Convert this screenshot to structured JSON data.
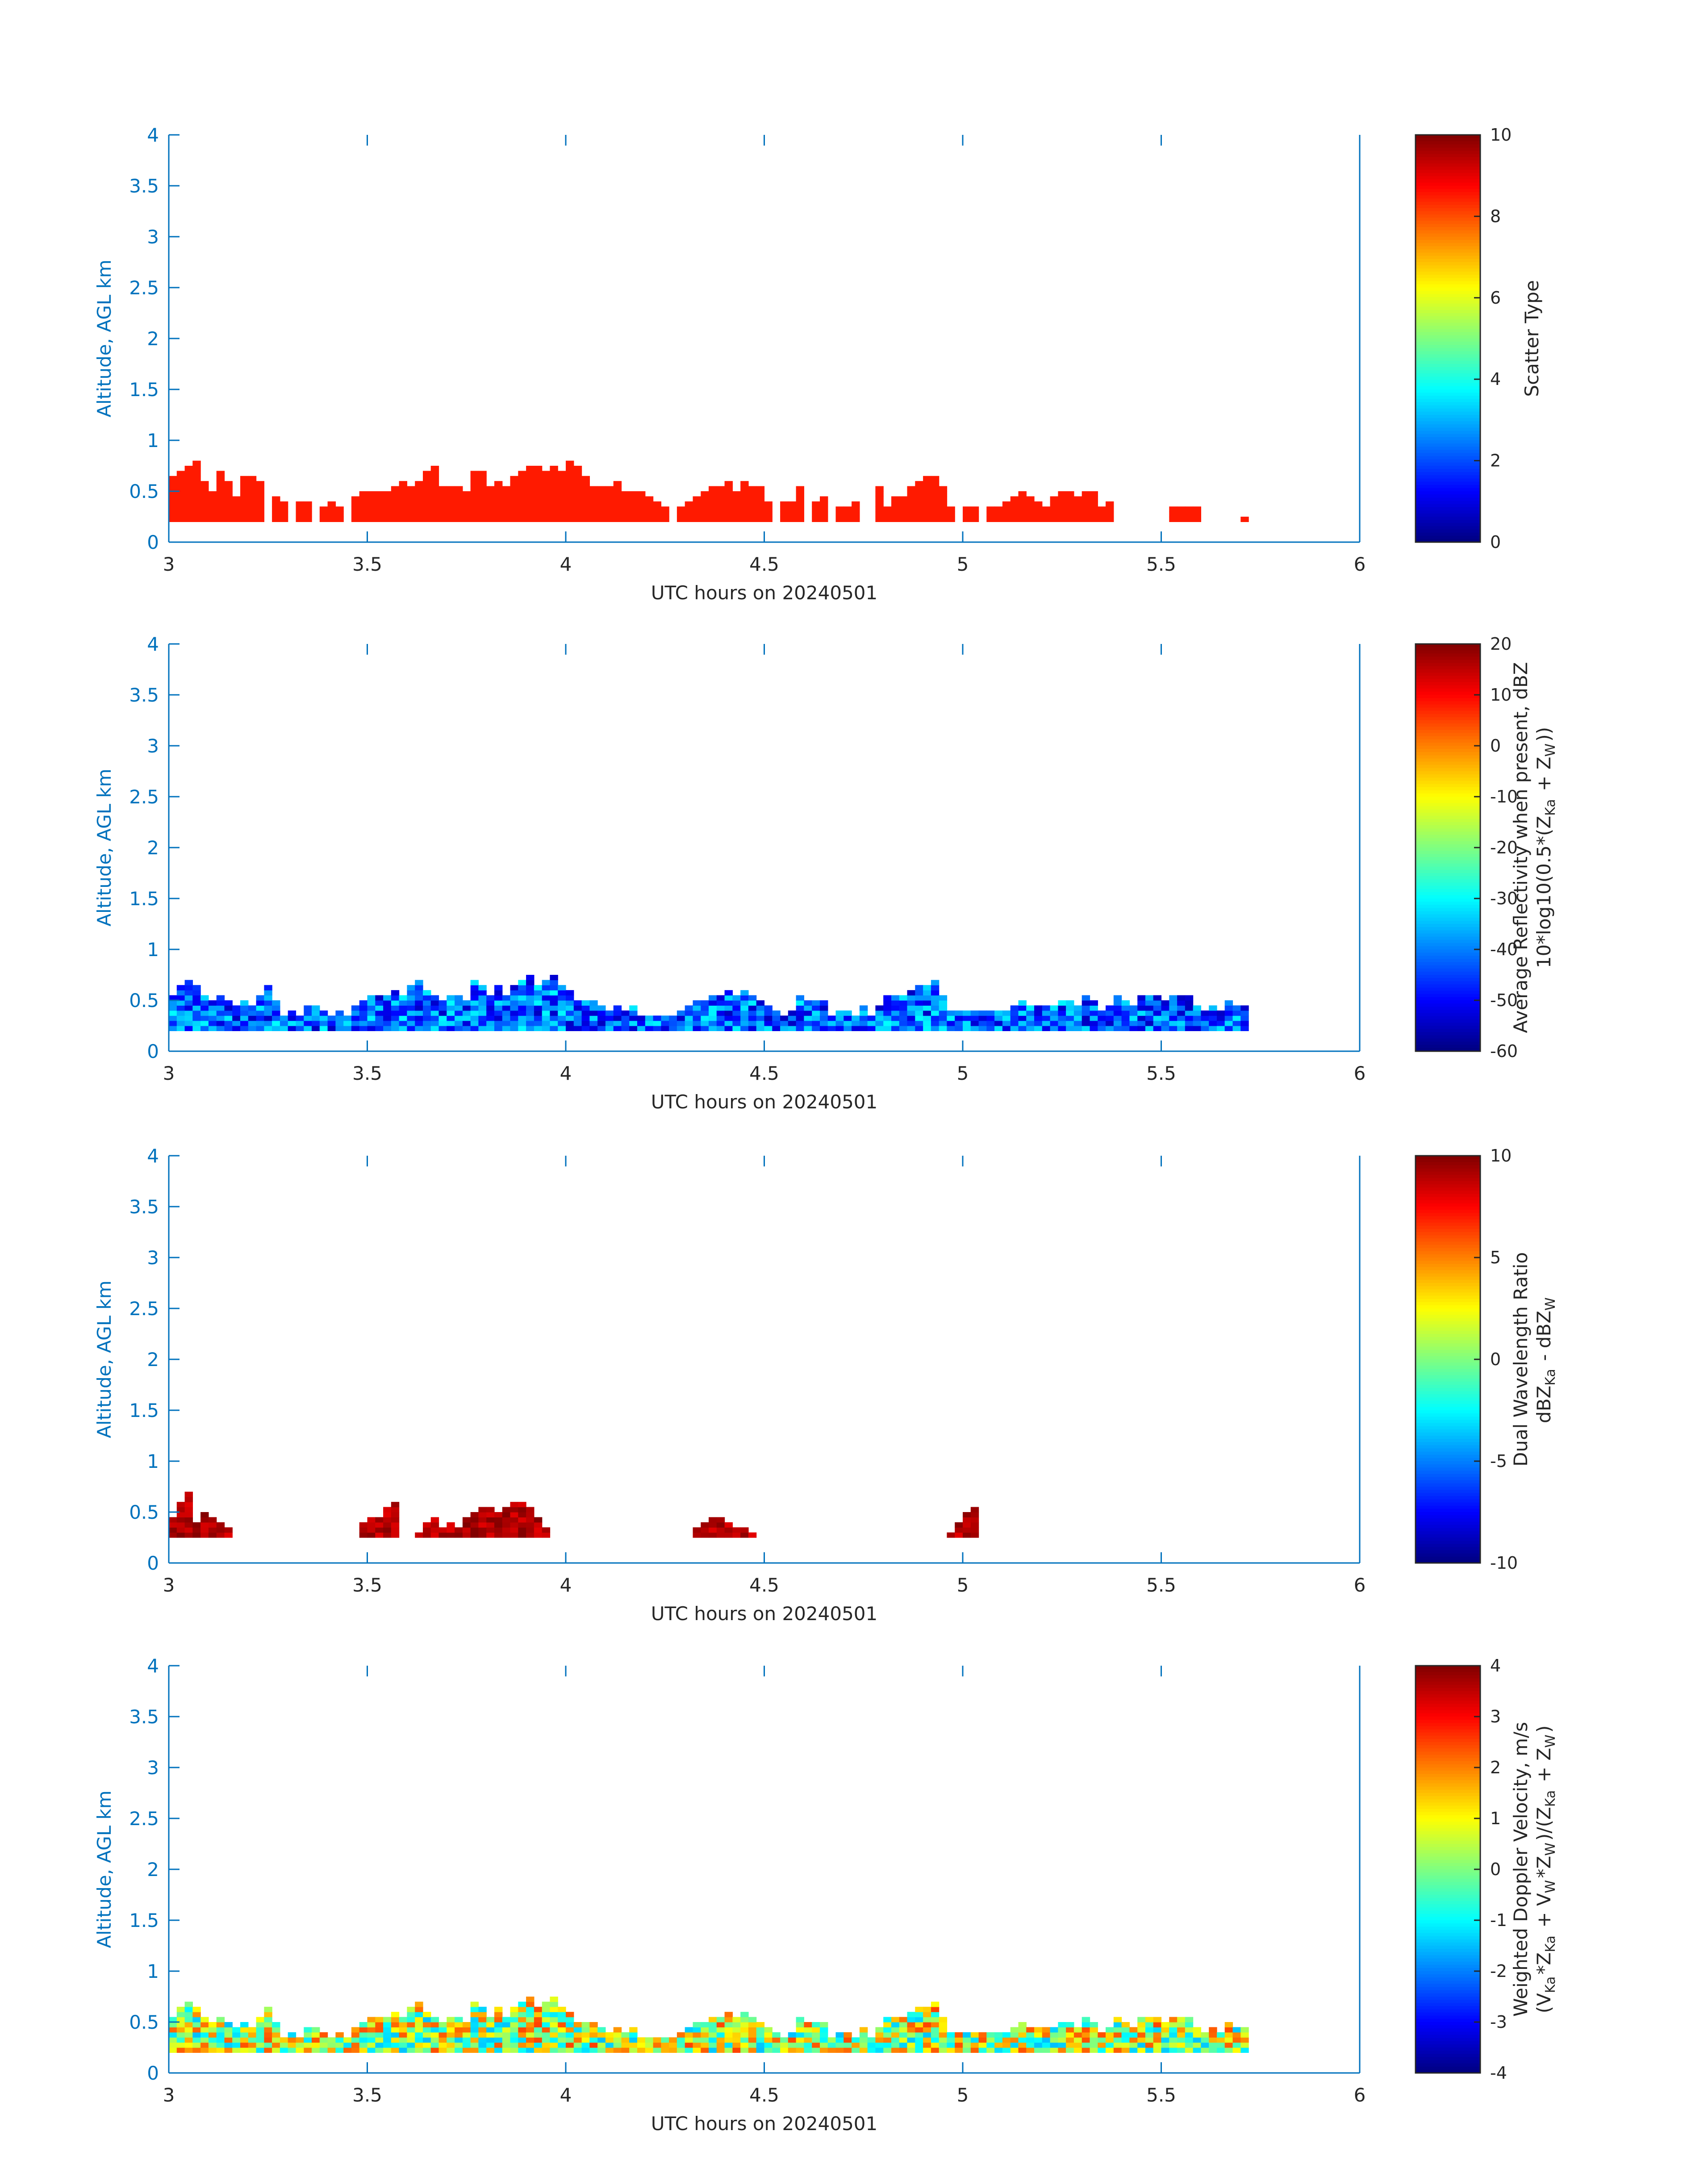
{
  "figure": {
    "x_axis_label": "UTC hours on 20240501",
    "y_axis_label": "Altitude, AGL km",
    "axis_color": "#0072BD"
  },
  "chart_data": [
    {
      "type": "heatmap",
      "xlabel": "UTC hours on 20240501",
      "ylabel": "Altitude, AGL km",
      "xlim": [
        3,
        6
      ],
      "ylim": [
        0,
        4
      ],
      "x_ticks": [
        3,
        3.5,
        4,
        4.5,
        5,
        5.5,
        6
      ],
      "x_tick_labels": [
        "3",
        "3.5",
        "4",
        "4.5",
        "5",
        "5.5",
        "6"
      ],
      "y_ticks": [
        0,
        0.5,
        1,
        1.5,
        2,
        2.5,
        3,
        3.5,
        4
      ],
      "y_tick_labels": [
        "0",
        "0.5",
        "1",
        "1.5",
        "2",
        "2.5",
        "3",
        "3.5",
        "4"
      ],
      "colorbar": {
        "label_lines": [
          "Scatter Type"
        ],
        "range": [
          0,
          10
        ],
        "ticks": [
          0,
          2,
          4,
          6,
          8,
          10
        ],
        "tick_labels": [
          "0",
          "2",
          "4",
          "6",
          "8",
          "10"
        ],
        "colormap": "jet"
      },
      "column_base_km": 0.2,
      "time_step_h": 0.02,
      "heights_km": [
        0.45,
        0.5,
        0.55,
        0.6,
        0.4,
        0.3,
        0.5,
        0.4,
        0.25,
        0.45,
        0.45,
        0.4,
        0,
        0.25,
        0.2,
        0,
        0.2,
        0.2,
        0,
        0.15,
        0.2,
        0.15,
        0,
        0.25,
        0.3,
        0.3,
        0.3,
        0.3,
        0.35,
        0.4,
        0.35,
        0.4,
        0.5,
        0.55,
        0.35,
        0.35,
        0.35,
        0.3,
        0.5,
        0.5,
        0.35,
        0.4,
        0.35,
        0.45,
        0.5,
        0.55,
        0.55,
        0.5,
        0.55,
        0.5,
        0.6,
        0.55,
        0.45,
        0.35,
        0.35,
        0.35,
        0.4,
        0.3,
        0.3,
        0.3,
        0.25,
        0.2,
        0.15,
        0,
        0.15,
        0.2,
        0.25,
        0.3,
        0.35,
        0.35,
        0.4,
        0.3,
        0.4,
        0.35,
        0.35,
        0.2,
        0,
        0.2,
        0.2,
        0.35,
        0,
        0.2,
        0.25,
        0,
        0.15,
        0.15,
        0.2,
        0,
        0,
        0.35,
        0.15,
        0.25,
        0.25,
        0.35,
        0.4,
        0.45,
        0.45,
        0.35,
        0.15,
        0,
        0.15,
        0.15,
        0,
        0.15,
        0.15,
        0.2,
        0.25,
        0.3,
        0.25,
        0.2,
        0.15,
        0.25,
        0.3,
        0.3,
        0.25,
        0.3,
        0.3,
        0.15,
        0.2,
        0,
        0,
        0,
        0,
        0,
        0,
        0,
        0.15,
        0.15,
        0.15,
        0.15,
        0,
        0,
        0,
        0,
        0,
        0.05
      ],
      "cell_value": 8.5
    },
    {
      "type": "heatmap",
      "xlabel": "UTC hours on 20240501",
      "ylabel": "Altitude, AGL km",
      "xlim": [
        3,
        6
      ],
      "ylim": [
        0,
        4
      ],
      "x_ticks": [
        3,
        3.5,
        4,
        4.5,
        5,
        5.5,
        6
      ],
      "x_tick_labels": [
        "3",
        "3.5",
        "4",
        "4.5",
        "5",
        "5.5",
        "6"
      ],
      "y_ticks": [
        0,
        0.5,
        1,
        1.5,
        2,
        2.5,
        3,
        3.5,
        4
      ],
      "y_tick_labels": [
        "0",
        "0.5",
        "1",
        "1.5",
        "2",
        "2.5",
        "3",
        "3.5",
        "4"
      ],
      "colorbar": {
        "label_lines": [
          "Average Reflectivity when present, dBZ",
          "10*log10(0.5*(Z_Ka + Z_W))"
        ],
        "range": [
          -60,
          20
        ],
        "ticks": [
          -60,
          -50,
          -40,
          -30,
          -20,
          -10,
          0,
          10,
          20
        ],
        "tick_labels": [
          "-60",
          "-50",
          "-40",
          "-30",
          "-20",
          "-10",
          "0",
          "10",
          "20"
        ],
        "colormap": "jet"
      },
      "column_base_km": 0.2,
      "time_step_h": 0.02,
      "heights_km": [
        0.35,
        0.45,
        0.5,
        0.45,
        0.35,
        0.3,
        0.35,
        0.3,
        0.25,
        0.3,
        0.25,
        0.35,
        0.45,
        0.3,
        0.15,
        0.2,
        0.15,
        0.25,
        0.25,
        0.2,
        0.15,
        0.2,
        0.15,
        0.25,
        0.3,
        0.35,
        0.35,
        0.35,
        0.4,
        0.35,
        0.45,
        0.5,
        0.4,
        0.35,
        0.3,
        0.35,
        0.35,
        0.3,
        0.5,
        0.45,
        0.35,
        0.45,
        0.35,
        0.45,
        0.5,
        0.55,
        0.45,
        0.5,
        0.55,
        0.45,
        0.4,
        0.3,
        0.3,
        0.3,
        0.25,
        0.2,
        0.25,
        0.2,
        0.25,
        0.15,
        0.15,
        0.15,
        0.15,
        0.15,
        0.2,
        0.25,
        0.3,
        0.3,
        0.35,
        0.35,
        0.4,
        0.35,
        0.4,
        0.35,
        0.3,
        0.25,
        0.2,
        0.15,
        0.2,
        0.35,
        0.3,
        0.3,
        0.3,
        0.15,
        0.2,
        0.2,
        0.15,
        0.25,
        0.15,
        0.25,
        0.35,
        0.35,
        0.35,
        0.4,
        0.45,
        0.45,
        0.5,
        0.35,
        0.2,
        0.2,
        0.2,
        0.2,
        0.2,
        0.2,
        0.2,
        0.2,
        0.25,
        0.3,
        0.25,
        0.25,
        0.25,
        0.25,
        0.3,
        0.3,
        0.25,
        0.35,
        0.3,
        0.2,
        0.25,
        0.35,
        0.3,
        0.25,
        0.35,
        0.35,
        0.35,
        0.3,
        0.35,
        0.35,
        0.35,
        0.25,
        0.2,
        0.25,
        0.2,
        0.3,
        0.25,
        0.25
      ],
      "cell_value_range": [
        -55,
        -30
      ]
    },
    {
      "type": "heatmap",
      "xlabel": "UTC hours on 20240501",
      "ylabel": "Altitude, AGL km",
      "xlim": [
        3,
        6
      ],
      "ylim": [
        0,
        4
      ],
      "x_ticks": [
        3,
        3.5,
        4,
        4.5,
        5,
        5.5,
        6
      ],
      "x_tick_labels": [
        "3",
        "3.5",
        "4",
        "4.5",
        "5",
        "5.5",
        "6"
      ],
      "y_ticks": [
        0,
        0.5,
        1,
        1.5,
        2,
        2.5,
        3,
        3.5,
        4
      ],
      "y_tick_labels": [
        "0",
        "0.5",
        "1",
        "1.5",
        "2",
        "2.5",
        "3",
        "3.5",
        "4"
      ],
      "colorbar": {
        "label_lines": [
          "Dual Wavelength Ratio",
          "dBZ_Ka - dBZ_W"
        ],
        "range": [
          -10,
          10
        ],
        "ticks": [
          -10,
          -5,
          0,
          5,
          10
        ],
        "tick_labels": [
          "-10",
          "-5",
          "0",
          "5",
          "10"
        ],
        "colormap": "jet"
      },
      "column_base_km": 0.25,
      "time_step_h": 0.02,
      "heights_km": [
        0.2,
        0.35,
        0.45,
        0.15,
        0.25,
        0.2,
        0.15,
        0.1,
        0,
        0,
        0,
        0,
        0,
        0,
        0,
        0,
        0,
        0,
        0,
        0,
        0,
        0,
        0,
        0,
        0.15,
        0.2,
        0.2,
        0.3,
        0.35,
        0,
        0,
        0.05,
        0.15,
        0.2,
        0.1,
        0.15,
        0.1,
        0.2,
        0.25,
        0.3,
        0.3,
        0.25,
        0.3,
        0.35,
        0.35,
        0.3,
        0.2,
        0.1,
        0,
        0,
        0,
        0,
        0,
        0,
        0,
        0,
        0,
        0,
        0,
        0,
        0,
        0,
        0,
        0,
        0,
        0,
        0.1,
        0.15,
        0.2,
        0.2,
        0.15,
        0.1,
        0.1,
        0.05,
        0,
        0,
        0,
        0,
        0,
        0,
        0,
        0,
        0,
        0,
        0,
        0,
        0,
        0,
        0,
        0,
        0,
        0,
        0,
        0,
        0,
        0,
        0,
        0,
        0.05,
        0.15,
        0.25,
        0.3,
        0,
        0,
        0,
        0,
        0,
        0,
        0,
        0,
        0,
        0,
        0,
        0,
        0,
        0,
        0,
        0,
        0,
        0,
        0,
        0,
        0,
        0,
        0,
        0,
        0,
        0,
        0,
        0,
        0,
        0,
        0,
        0,
        0,
        0,
        0
      ],
      "cell_value_range": [
        8,
        10
      ]
    },
    {
      "type": "heatmap",
      "xlabel": "UTC hours on 20240501",
      "ylabel": "Altitude, AGL km",
      "xlim": [
        3,
        6
      ],
      "ylim": [
        0,
        4
      ],
      "x_ticks": [
        3,
        3.5,
        4,
        4.5,
        5,
        5.5,
        6
      ],
      "x_tick_labels": [
        "3",
        "3.5",
        "4",
        "4.5",
        "5",
        "5.5",
        "6"
      ],
      "y_ticks": [
        0,
        0.5,
        1,
        1.5,
        2,
        2.5,
        3,
        3.5,
        4
      ],
      "y_tick_labels": [
        "0",
        "0.5",
        "1",
        "1.5",
        "2",
        "2.5",
        "3",
        "3.5",
        "4"
      ],
      "colorbar": {
        "label_lines": [
          "Weighted Doppler Velocity, m/s",
          "(V_Ka*Z_Ka + V_W*Z_W)/(Z_Ka + Z_W)"
        ],
        "range": [
          -4,
          4
        ],
        "ticks": [
          -4,
          -3,
          -2,
          -1,
          0,
          1,
          2,
          3,
          4
        ],
        "tick_labels": [
          "-4",
          "-3",
          "-2",
          "-1",
          "0",
          "1",
          "2",
          "3",
          "4"
        ],
        "colormap": "jet"
      },
      "column_base_km": 0.2,
      "time_step_h": 0.02,
      "heights_km": [
        0.35,
        0.45,
        0.5,
        0.45,
        0.35,
        0.3,
        0.35,
        0.3,
        0.25,
        0.3,
        0.25,
        0.35,
        0.45,
        0.3,
        0.15,
        0.2,
        0.15,
        0.25,
        0.25,
        0.2,
        0.15,
        0.2,
        0.15,
        0.25,
        0.3,
        0.35,
        0.35,
        0.35,
        0.4,
        0.35,
        0.45,
        0.5,
        0.4,
        0.35,
        0.3,
        0.35,
        0.35,
        0.3,
        0.5,
        0.45,
        0.35,
        0.45,
        0.35,
        0.45,
        0.5,
        0.55,
        0.45,
        0.5,
        0.55,
        0.45,
        0.4,
        0.3,
        0.3,
        0.3,
        0.25,
        0.2,
        0.25,
        0.2,
        0.25,
        0.15,
        0.15,
        0.15,
        0.15,
        0.15,
        0.2,
        0.25,
        0.3,
        0.3,
        0.35,
        0.35,
        0.4,
        0.35,
        0.4,
        0.35,
        0.3,
        0.25,
        0.2,
        0.15,
        0.2,
        0.35,
        0.3,
        0.3,
        0.3,
        0.15,
        0.2,
        0.2,
        0.15,
        0.25,
        0.15,
        0.25,
        0.35,
        0.35,
        0.35,
        0.4,
        0.45,
        0.45,
        0.5,
        0.35,
        0.2,
        0.2,
        0.2,
        0.2,
        0.2,
        0.2,
        0.2,
        0.2,
        0.25,
        0.3,
        0.25,
        0.25,
        0.25,
        0.25,
        0.3,
        0.3,
        0.25,
        0.35,
        0.3,
        0.2,
        0.25,
        0.35,
        0.3,
        0.25,
        0.35,
        0.35,
        0.35,
        0.3,
        0.35,
        0.35,
        0.35,
        0.25,
        0.2,
        0.25,
        0.2,
        0.3,
        0.25,
        0.25
      ],
      "cell_value_range": [
        -1.5,
        2.5
      ]
    }
  ]
}
